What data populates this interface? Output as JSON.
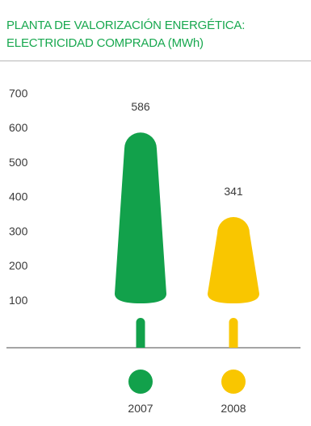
{
  "title_lines": [
    "PLANTA DE VALORIZACIÓN ENERGÉTICA:",
    "ELECTRICIDAD COMPRADA (MWh)"
  ],
  "colors": {
    "title": "#18a84f",
    "series_2007": "#12a14b",
    "series_2008": "#f9c600",
    "axis": "#4a4a4a",
    "text": "#3a3a3a",
    "border": "#b7b7b7"
  },
  "chart_data": {
    "type": "bar",
    "categories": [
      "2007",
      "2008"
    ],
    "values": [
      586,
      341
    ],
    "value_labels": [
      "586",
      "341"
    ],
    "ylim": [
      0,
      700
    ],
    "y_ticks": [
      100,
      200,
      300,
      400,
      500,
      600,
      700
    ],
    "y_tick_labels": [
      "100",
      "200",
      "300",
      "400",
      "500",
      "600",
      "700"
    ],
    "xlabel": "",
    "ylabel": "",
    "grid": false,
    "legend": "none",
    "bar_colors": [
      "#12a14b",
      "#f9c600"
    ]
  }
}
